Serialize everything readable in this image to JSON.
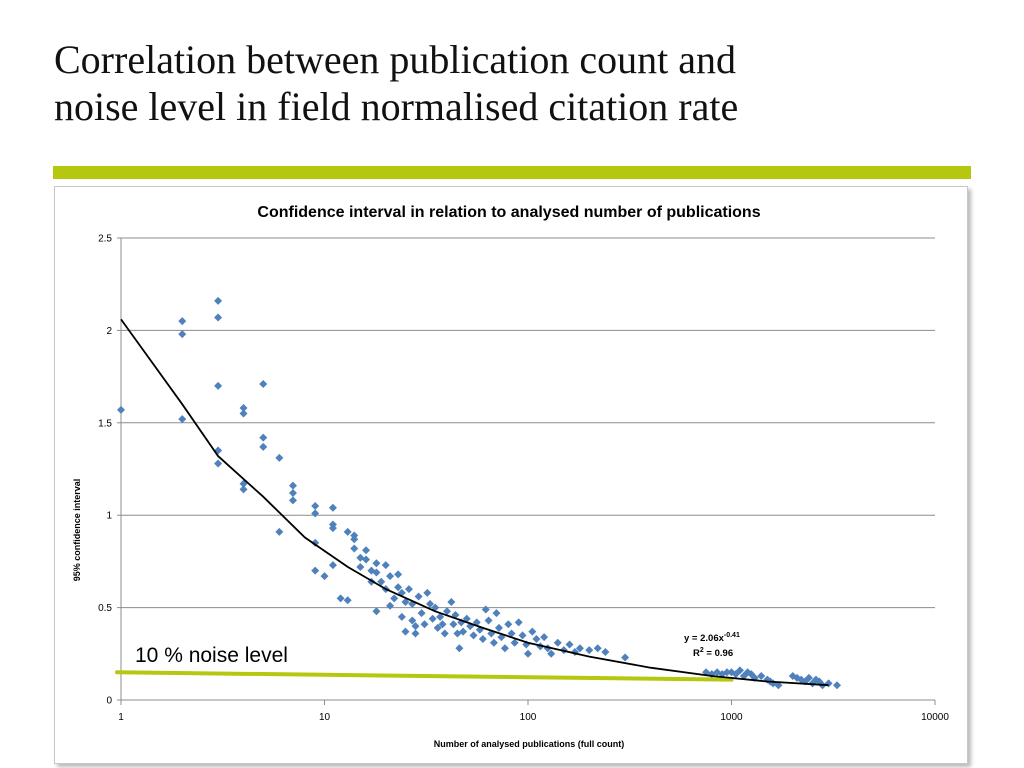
{
  "slide": {
    "title_line1": "Correlation between publication count and",
    "title_line2": "noise level in field normalised citation rate"
  },
  "colors": {
    "accent": "#b5c80f",
    "points": "#4f81bd",
    "trendline": "#000000",
    "noise_line": "#b5c80f"
  },
  "chart_data": {
    "type": "scatter",
    "title": "Confidence interval in relation to analysed number of publications",
    "xlabel": "Number of analysed  publications  (full count)",
    "ylabel": "95% confidence interval",
    "xscale": "log",
    "xlim": [
      1,
      10000
    ],
    "ylim": [
      0,
      2.5
    ],
    "xticks": [
      1,
      10,
      100,
      1000,
      10000
    ],
    "xtick_labels": [
      "1",
      "10",
      "100",
      "1000",
      "10000"
    ],
    "yticks": [
      0,
      0.5,
      1,
      1.5,
      2,
      2.5
    ],
    "ytick_labels": [
      "0",
      "0.5",
      "1",
      "1.5",
      "2",
      "2.5"
    ],
    "grid": "horizontal",
    "annotations": {
      "equation_base": "y = 2.06x",
      "equation_exp": "-0.41",
      "r2_pre": "R",
      "r2_sup": "2",
      "r2_post": " = 0.96",
      "noise_label": "10 % noise level"
    },
    "trendline": [
      [
        1,
        2.06
      ],
      [
        2,
        1.6
      ],
      [
        3,
        1.32
      ],
      [
        5,
        1.1
      ],
      [
        8,
        0.88
      ],
      [
        13,
        0.72
      ],
      [
        20,
        0.6
      ],
      [
        35,
        0.48
      ],
      [
        60,
        0.39
      ],
      [
        100,
        0.31
      ],
      [
        200,
        0.235
      ],
      [
        400,
        0.175
      ],
      [
        800,
        0.13
      ],
      [
        1500,
        0.1
      ],
      [
        3000,
        0.08
      ]
    ],
    "noise_line": [
      [
        1,
        0.15
      ],
      [
        1000,
        0.11
      ]
    ],
    "points": [
      [
        1,
        1.57
      ],
      [
        2,
        2.05
      ],
      [
        2,
        1.98
      ],
      [
        2,
        1.52
      ],
      [
        3,
        2.16
      ],
      [
        3,
        2.07
      ],
      [
        3,
        1.7
      ],
      [
        3,
        1.35
      ],
      [
        3,
        1.28
      ],
      [
        4,
        1.58
      ],
      [
        4,
        1.55
      ],
      [
        4,
        1.17
      ],
      [
        4,
        1.14
      ],
      [
        5,
        1.71
      ],
      [
        5,
        1.42
      ],
      [
        5,
        1.37
      ],
      [
        6,
        1.31
      ],
      [
        6,
        0.91
      ],
      [
        7,
        1.16
      ],
      [
        7,
        1.12
      ],
      [
        7,
        1.08
      ],
      [
        9,
        1.05
      ],
      [
        9,
        1.01
      ],
      [
        9,
        0.85
      ],
      [
        9,
        0.7
      ],
      [
        10,
        0.67
      ],
      [
        11,
        1.04
      ],
      [
        11,
        0.95
      ],
      [
        11,
        0.93
      ],
      [
        11,
        0.73
      ],
      [
        12,
        0.55
      ],
      [
        13,
        0.91
      ],
      [
        13,
        0.54
      ],
      [
        14,
        0.89
      ],
      [
        14,
        0.87
      ],
      [
        14,
        0.82
      ],
      [
        15,
        0.77
      ],
      [
        15,
        0.72
      ],
      [
        16,
        0.81
      ],
      [
        16,
        0.76
      ],
      [
        17,
        0.7
      ],
      [
        17,
        0.64
      ],
      [
        18,
        0.74
      ],
      [
        18,
        0.69
      ],
      [
        18,
        0.48
      ],
      [
        19,
        0.64
      ],
      [
        20,
        0.73
      ],
      [
        20,
        0.6
      ],
      [
        21,
        0.67
      ],
      [
        21,
        0.51
      ],
      [
        22,
        0.55
      ],
      [
        23,
        0.61
      ],
      [
        23,
        0.68
      ],
      [
        24,
        0.58
      ],
      [
        24,
        0.45
      ],
      [
        25,
        0.53
      ],
      [
        25,
        0.37
      ],
      [
        26,
        0.6
      ],
      [
        27,
        0.52
      ],
      [
        27,
        0.43
      ],
      [
        28,
        0.4
      ],
      [
        28,
        0.36
      ],
      [
        29,
        0.56
      ],
      [
        30,
        0.47
      ],
      [
        31,
        0.41
      ],
      [
        32,
        0.58
      ],
      [
        33,
        0.52
      ],
      [
        34,
        0.44
      ],
      [
        35,
        0.5
      ],
      [
        36,
        0.39
      ],
      [
        37,
        0.45
      ],
      [
        38,
        0.41
      ],
      [
        39,
        0.36
      ],
      [
        40,
        0.48
      ],
      [
        42,
        0.53
      ],
      [
        43,
        0.41
      ],
      [
        44,
        0.46
      ],
      [
        45,
        0.36
      ],
      [
        46,
        0.28
      ],
      [
        47,
        0.42
      ],
      [
        48,
        0.37
      ],
      [
        50,
        0.44
      ],
      [
        52,
        0.4
      ],
      [
        54,
        0.35
      ],
      [
        56,
        0.42
      ],
      [
        58,
        0.38
      ],
      [
        60,
        0.33
      ],
      [
        62,
        0.49
      ],
      [
        64,
        0.43
      ],
      [
        66,
        0.36
      ],
      [
        68,
        0.31
      ],
      [
        70,
        0.47
      ],
      [
        72,
        0.39
      ],
      [
        74,
        0.34
      ],
      [
        77,
        0.28
      ],
      [
        80,
        0.41
      ],
      [
        83,
        0.36
      ],
      [
        86,
        0.31
      ],
      [
        90,
        0.42
      ],
      [
        94,
        0.35
      ],
      [
        98,
        0.3
      ],
      [
        100,
        0.25
      ],
      [
        105,
        0.37
      ],
      [
        110,
        0.33
      ],
      [
        115,
        0.29
      ],
      [
        120,
        0.34
      ],
      [
        125,
        0.28
      ],
      [
        130,
        0.25
      ],
      [
        140,
        0.31
      ],
      [
        150,
        0.27
      ],
      [
        160,
        0.3
      ],
      [
        170,
        0.26
      ],
      [
        180,
        0.28
      ],
      [
        200,
        0.27
      ],
      [
        220,
        0.28
      ],
      [
        240,
        0.26
      ],
      [
        300,
        0.23
      ],
      [
        750,
        0.15
      ],
      [
        800,
        0.14
      ],
      [
        850,
        0.15
      ],
      [
        900,
        0.14
      ],
      [
        950,
        0.15
      ],
      [
        1000,
        0.15
      ],
      [
        1050,
        0.14
      ],
      [
        1100,
        0.16
      ],
      [
        1150,
        0.13
      ],
      [
        1200,
        0.15
      ],
      [
        1250,
        0.14
      ],
      [
        1300,
        0.12
      ],
      [
        1400,
        0.13
      ],
      [
        1500,
        0.11
      ],
      [
        1550,
        0.1
      ],
      [
        1600,
        0.09
      ],
      [
        1700,
        0.08
      ],
      [
        2000,
        0.13
      ],
      [
        2100,
        0.12
      ],
      [
        2200,
        0.11
      ],
      [
        2300,
        0.1
      ],
      [
        2400,
        0.12
      ],
      [
        2500,
        0.09
      ],
      [
        2600,
        0.11
      ],
      [
        2700,
        0.1
      ],
      [
        2800,
        0.08
      ],
      [
        3000,
        0.09
      ],
      [
        3300,
        0.08
      ]
    ]
  }
}
